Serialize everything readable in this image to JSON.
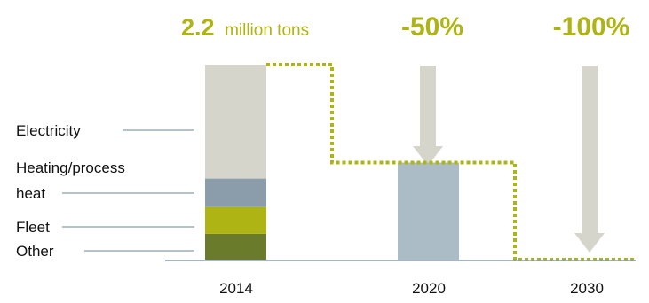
{
  "chart_data": {
    "type": "bar",
    "stacked": true,
    "categories": [
      "2014",
      "2020",
      "2030"
    ],
    "unit": "million tons",
    "headline": {
      "baseline_value": "2.2",
      "baseline_unit": "million tons",
      "reduction_2020": "-50%",
      "reduction_2030": "-100%"
    },
    "series": [
      {
        "name": "Other",
        "values": [
          0.3,
          null,
          null
        ]
      },
      {
        "name": "Fleet",
        "values": [
          0.3,
          null,
          null
        ]
      },
      {
        "name": "Heating/process heat",
        "values": [
          0.32,
          null,
          null
        ]
      },
      {
        "name": "Electricity",
        "values": [
          1.28,
          null,
          null
        ]
      }
    ],
    "total_2020": 1.1,
    "total_2030": 0,
    "segment_labels": [
      {
        "key": "electricity",
        "text": "Electricity"
      },
      {
        "key": "heating",
        "text": "Heating/process heat"
      },
      {
        "key": "fleet",
        "text": "Fleet"
      },
      {
        "key": "other",
        "text": "Other"
      }
    ],
    "target_path_values": [
      2.2,
      1.1,
      0
    ],
    "colors": {
      "electricity": "#d6d5cc",
      "heating": "#8b9dab",
      "fleet": "#aeb414",
      "other": "#6b7b2c",
      "bar_2020": "#abbcc6",
      "arrow": "#d6d5cc",
      "target_line": "#aeb414",
      "headline": "#aeb414",
      "leader": "#8b9dab",
      "axis": "#8b9dab"
    }
  }
}
